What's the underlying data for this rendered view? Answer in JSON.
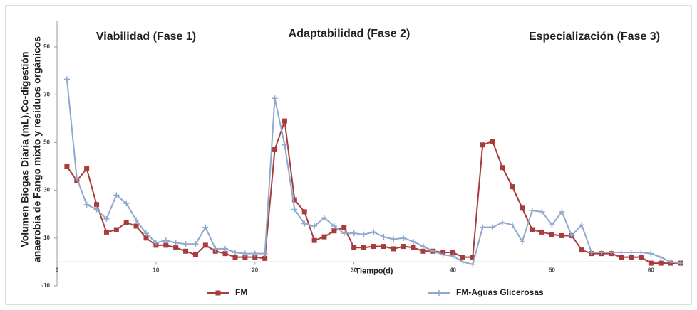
{
  "chart_data": {
    "type": "line",
    "annotations": [
      "Viabilidad (Fase 1)",
      "Adaptabilidad (Fase 2)",
      "Especialización (Fase 3)"
    ],
    "y_label": [
      "Volumen Biogas Diaria (mL).Co-digestión",
      "anaerobia de Fango mixto y residuos orgánicos"
    ],
    "x_label": "Tiempo(d)",
    "x": [
      1,
      2,
      3,
      4,
      5,
      6,
      7,
      8,
      9,
      10,
      11,
      12,
      13,
      14,
      15,
      16,
      17,
      18,
      19,
      20,
      21,
      22,
      23,
      24,
      25,
      26,
      27,
      28,
      29,
      30,
      31,
      32,
      33,
      34,
      35,
      36,
      37,
      38,
      39,
      40,
      41,
      42,
      43,
      44,
      45,
      46,
      47,
      48,
      49,
      50,
      51,
      52,
      53,
      54,
      55,
      56,
      57,
      58,
      59,
      60,
      61,
      62,
      63
    ],
    "series": [
      {
        "name": "FM",
        "color": "#a83c3c",
        "marker": "square",
        "values": [
          40,
          34,
          39,
          24,
          12.5,
          13.5,
          16.5,
          15,
          10,
          7,
          7,
          6,
          4.5,
          3,
          7,
          4.5,
          3.5,
          2,
          2,
          2,
          1.5,
          47,
          59,
          26,
          21,
          9,
          10.5,
          13,
          14.5,
          6,
          6,
          6.5,
          6.5,
          5.5,
          6.5,
          6,
          4.5,
          4.5,
          4,
          4,
          2,
          2,
          49,
          50.5,
          39.5,
          31.5,
          22.5,
          13.5,
          12.5,
          11.5,
          11,
          11,
          5,
          3.5,
          3.5,
          3.5,
          2,
          2,
          2,
          -0.5,
          -0.5,
          -0.5,
          -0.5
        ]
      },
      {
        "name": "FM-Aguas Glicerosas",
        "color": "#8fa8cc",
        "marker": "plus",
        "values": [
          76.5,
          35,
          24,
          22,
          18,
          28,
          24.5,
          17.5,
          12,
          8,
          9,
          8,
          7.5,
          7.5,
          14.5,
          5.5,
          5.5,
          4,
          3.5,
          3.5,
          3.5,
          68.5,
          49,
          22,
          16,
          15,
          18.5,
          15,
          12,
          12,
          11.5,
          12.5,
          10.5,
          9.5,
          10,
          8.5,
          6.5,
          4.5,
          3,
          2.5,
          0,
          -1,
          14.5,
          14.5,
          16.5,
          15.5,
          8.5,
          21.5,
          21,
          15.5,
          21,
          11,
          15.5,
          4,
          4,
          4,
          4,
          4,
          4,
          3.5,
          2,
          0,
          -0.5
        ]
      }
    ],
    "xlim": [
      0,
      63
    ],
    "xticks": [
      0,
      10,
      20,
      30,
      40,
      50,
      60
    ],
    "ylim": [
      -10,
      90
    ],
    "yticks": [
      -10,
      10,
      30,
      50,
      70,
      90
    ],
    "grid": false,
    "legend": "bottom"
  }
}
